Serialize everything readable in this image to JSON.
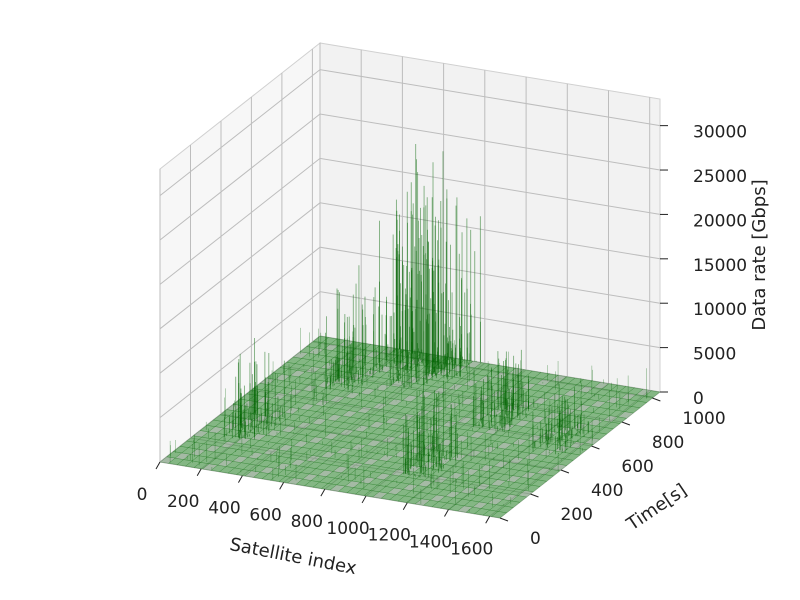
{
  "chart_data": {
    "type": "surface3d",
    "xlabel": "Satellite index",
    "ylabel": "Time[s]",
    "zlabel": "Data rate [Gbps]",
    "xlim": [
      0,
      1650
    ],
    "ylim": [
      0,
      1050
    ],
    "zlim": [
      0,
      33000
    ],
    "x_ticks": [
      "0",
      "200",
      "400",
      "600",
      "800",
      "1000",
      "1200",
      "1400",
      "1600"
    ],
    "y_ticks": [
      "0",
      "200",
      "400",
      "600",
      "800",
      "1000"
    ],
    "z_ticks": [
      "0",
      "5000",
      "10000",
      "15000",
      "20000",
      "25000",
      "30000"
    ],
    "grid": true,
    "surface_color": "#2e8b2e",
    "edge_color": "#006400",
    "peaks": [
      {
        "x": 200,
        "y": 350,
        "z": 9000
      },
      {
        "x": 350,
        "y": 800,
        "z": 12000
      },
      {
        "x": 450,
        "y": 1000,
        "z": 18000
      },
      {
        "x": 600,
        "y": 900,
        "z": 26000
      },
      {
        "x": 700,
        "y": 1000,
        "z": 20000
      },
      {
        "x": 1150,
        "y": 700,
        "z": 7000
      },
      {
        "x": 1100,
        "y": 300,
        "z": 9000
      },
      {
        "x": 1500,
        "y": 600,
        "z": 5000
      }
    ]
  }
}
